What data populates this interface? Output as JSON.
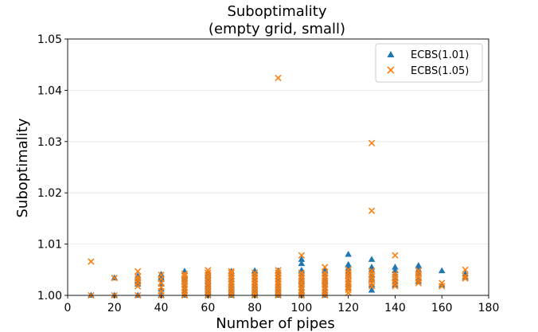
{
  "chart_data": {
    "type": "scatter",
    "title": "Suboptimality",
    "subtitle": "(empty grid, small)",
    "xlabel": "Number of pipes",
    "ylabel": "Suboptimality",
    "xlim": [
      0,
      180
    ],
    "ylim": [
      1.0,
      1.05
    ],
    "x_ticks": [
      0,
      20,
      40,
      60,
      80,
      100,
      120,
      140,
      160,
      180
    ],
    "y_ticks": [
      1.0,
      1.01,
      1.02,
      1.03,
      1.04,
      1.05
    ],
    "x_tick_labels": [
      "0",
      "20",
      "40",
      "60",
      "80",
      "100",
      "120",
      "140",
      "160",
      "180"
    ],
    "y_tick_labels": [
      "1.00",
      "1.01",
      "1.02",
      "1.03",
      "1.04",
      "1.05"
    ],
    "grid": "horizontal",
    "legend_position": "top-right",
    "colors": {
      "ecbs101": "#1f77b4",
      "ecbs105": "#ff7f0e",
      "grid": "#e6e6e6"
    },
    "series": [
      {
        "name": "ECBS(1.01)",
        "marker": "triangle",
        "points": [
          [
            10,
            1.0
          ],
          [
            20,
            1.0
          ],
          [
            20,
            1.0034
          ],
          [
            30,
            1.0
          ],
          [
            30,
            1.0022
          ],
          [
            30,
            1.0028
          ],
          [
            30,
            1.0033
          ],
          [
            30,
            1.0038
          ],
          [
            40,
            1.0
          ],
          [
            40,
            1.0012
          ],
          [
            40,
            1.0022
          ],
          [
            40,
            1.0031
          ],
          [
            40,
            1.0035
          ],
          [
            40,
            1.0041
          ],
          [
            50,
            1.0
          ],
          [
            50,
            1.0008
          ],
          [
            50,
            1.0014
          ],
          [
            50,
            1.002
          ],
          [
            50,
            1.0027
          ],
          [
            50,
            1.0033
          ],
          [
            50,
            1.0039
          ],
          [
            50,
            1.0047
          ],
          [
            60,
            1.0
          ],
          [
            60,
            1.0006
          ],
          [
            60,
            1.0011
          ],
          [
            60,
            1.0017
          ],
          [
            60,
            1.0022
          ],
          [
            60,
            1.0028
          ],
          [
            60,
            1.0033
          ],
          [
            60,
            1.0039
          ],
          [
            60,
            1.0044
          ],
          [
            70,
            1.0
          ],
          [
            70,
            1.0006
          ],
          [
            70,
            1.0012
          ],
          [
            70,
            1.0018
          ],
          [
            70,
            1.0024
          ],
          [
            70,
            1.003
          ],
          [
            70,
            1.0036
          ],
          [
            70,
            1.0042
          ],
          [
            70,
            1.0047
          ],
          [
            80,
            1.0
          ],
          [
            80,
            1.0006
          ],
          [
            80,
            1.0012
          ],
          [
            80,
            1.0018
          ],
          [
            80,
            1.0024
          ],
          [
            80,
            1.003
          ],
          [
            80,
            1.0036
          ],
          [
            80,
            1.0042
          ],
          [
            80,
            1.0048
          ],
          [
            90,
            1.0
          ],
          [
            90,
            1.0006
          ],
          [
            90,
            1.0012
          ],
          [
            90,
            1.0018
          ],
          [
            90,
            1.0024
          ],
          [
            90,
            1.003
          ],
          [
            90,
            1.0036
          ],
          [
            90,
            1.0042
          ],
          [
            90,
            1.0048
          ],
          [
            100,
            1.0
          ],
          [
            100,
            1.0007
          ],
          [
            100,
            1.0014
          ],
          [
            100,
            1.0021
          ],
          [
            100,
            1.0028
          ],
          [
            100,
            1.0035
          ],
          [
            100,
            1.0042
          ],
          [
            100,
            1.0049
          ],
          [
            100,
            1.0062
          ],
          [
            100,
            1.007
          ],
          [
            110,
            1.0
          ],
          [
            110,
            1.0007
          ],
          [
            110,
            1.0014
          ],
          [
            110,
            1.0021
          ],
          [
            110,
            1.0028
          ],
          [
            110,
            1.0035
          ],
          [
            110,
            1.0042
          ],
          [
            110,
            1.0049
          ],
          [
            120,
            1.0015
          ],
          [
            120,
            1.0022
          ],
          [
            120,
            1.003
          ],
          [
            120,
            1.0038
          ],
          [
            120,
            1.0046
          ],
          [
            120,
            1.0053
          ],
          [
            120,
            1.006
          ],
          [
            120,
            1.008
          ],
          [
            130,
            1.001
          ],
          [
            130,
            1.002
          ],
          [
            130,
            1.003
          ],
          [
            130,
            1.004
          ],
          [
            130,
            1.005
          ],
          [
            130,
            1.0055
          ],
          [
            130,
            1.007
          ],
          [
            140,
            1.002
          ],
          [
            140,
            1.0027
          ],
          [
            140,
            1.0034
          ],
          [
            140,
            1.0041
          ],
          [
            140,
            1.0048
          ],
          [
            140,
            1.0055
          ],
          [
            150,
            1.0027
          ],
          [
            150,
            1.0034
          ],
          [
            150,
            1.0042
          ],
          [
            150,
            1.005
          ],
          [
            150,
            1.0058
          ],
          [
            160,
            1.002
          ],
          [
            160,
            1.0048
          ],
          [
            170,
            1.0035
          ],
          [
            170,
            1.0042
          ]
        ]
      },
      {
        "name": "ECBS(1.05)",
        "marker": "x",
        "points": [
          [
            10,
            1.0
          ],
          [
            10,
            1.0066
          ],
          [
            20,
            1.0
          ],
          [
            20,
            1.0034
          ],
          [
            30,
            1.0
          ],
          [
            30,
            1.0018
          ],
          [
            30,
            1.0025
          ],
          [
            30,
            1.0031
          ],
          [
            30,
            1.0036
          ],
          [
            30,
            1.0047
          ],
          [
            40,
            1.0
          ],
          [
            40,
            1.0008
          ],
          [
            40,
            1.0016
          ],
          [
            40,
            1.0024
          ],
          [
            40,
            1.0032
          ],
          [
            40,
            1.004
          ],
          [
            50,
            1.0
          ],
          [
            50,
            1.0005
          ],
          [
            50,
            1.0011
          ],
          [
            50,
            1.0016
          ],
          [
            50,
            1.0022
          ],
          [
            50,
            1.0027
          ],
          [
            50,
            1.0033
          ],
          [
            50,
            1.0038
          ],
          [
            50,
            1.0042
          ],
          [
            60,
            1.0
          ],
          [
            60,
            1.0005
          ],
          [
            60,
            1.0011
          ],
          [
            60,
            1.0016
          ],
          [
            60,
            1.0022
          ],
          [
            60,
            1.0027
          ],
          [
            60,
            1.0033
          ],
          [
            60,
            1.0038
          ],
          [
            60,
            1.0044
          ],
          [
            60,
            1.0049
          ],
          [
            70,
            1.0
          ],
          [
            70,
            1.0005
          ],
          [
            70,
            1.0011
          ],
          [
            70,
            1.0016
          ],
          [
            70,
            1.0022
          ],
          [
            70,
            1.0027
          ],
          [
            70,
            1.0033
          ],
          [
            70,
            1.0038
          ],
          [
            70,
            1.0044
          ],
          [
            70,
            1.0047
          ],
          [
            80,
            1.0
          ],
          [
            80,
            1.0005
          ],
          [
            80,
            1.0011
          ],
          [
            80,
            1.0016
          ],
          [
            80,
            1.0022
          ],
          [
            80,
            1.0027
          ],
          [
            80,
            1.0033
          ],
          [
            80,
            1.0038
          ],
          [
            80,
            1.0044
          ],
          [
            90,
            1.0
          ],
          [
            90,
            1.0005
          ],
          [
            90,
            1.0011
          ],
          [
            90,
            1.0016
          ],
          [
            90,
            1.0022
          ],
          [
            90,
            1.0027
          ],
          [
            90,
            1.0033
          ],
          [
            90,
            1.0038
          ],
          [
            90,
            1.0044
          ],
          [
            90,
            1.0049
          ],
          [
            90,
            1.0424
          ],
          [
            100,
            1.0
          ],
          [
            100,
            1.0005
          ],
          [
            100,
            1.0011
          ],
          [
            100,
            1.0016
          ],
          [
            100,
            1.0022
          ],
          [
            100,
            1.0027
          ],
          [
            100,
            1.0033
          ],
          [
            100,
            1.0038
          ],
          [
            100,
            1.0044
          ],
          [
            100,
            1.0078
          ],
          [
            110,
            1.0
          ],
          [
            110,
            1.0005
          ],
          [
            110,
            1.0011
          ],
          [
            110,
            1.0016
          ],
          [
            110,
            1.0022
          ],
          [
            110,
            1.0027
          ],
          [
            110,
            1.0033
          ],
          [
            110,
            1.0038
          ],
          [
            110,
            1.0044
          ],
          [
            110,
            1.0055
          ],
          [
            120,
            1.0005
          ],
          [
            120,
            1.0011
          ],
          [
            120,
            1.0016
          ],
          [
            120,
            1.0022
          ],
          [
            120,
            1.0027
          ],
          [
            120,
            1.0033
          ],
          [
            120,
            1.0038
          ],
          [
            120,
            1.0044
          ],
          [
            120,
            1.005
          ],
          [
            130,
            1.0018
          ],
          [
            130,
            1.0024
          ],
          [
            130,
            1.003
          ],
          [
            130,
            1.0036
          ],
          [
            130,
            1.0042
          ],
          [
            130,
            1.0048
          ],
          [
            130,
            1.0165
          ],
          [
            130,
            1.0297
          ],
          [
            140,
            1.0018
          ],
          [
            140,
            1.0024
          ],
          [
            140,
            1.003
          ],
          [
            140,
            1.0036
          ],
          [
            140,
            1.0042
          ],
          [
            140,
            1.0078
          ],
          [
            150,
            1.0024
          ],
          [
            150,
            1.003
          ],
          [
            150,
            1.0036
          ],
          [
            150,
            1.0042
          ],
          [
            150,
            1.0048
          ],
          [
            160,
            1.0018
          ],
          [
            160,
            1.0024
          ],
          [
            170,
            1.0033
          ],
          [
            170,
            1.0038
          ],
          [
            170,
            1.005
          ]
        ]
      }
    ]
  }
}
